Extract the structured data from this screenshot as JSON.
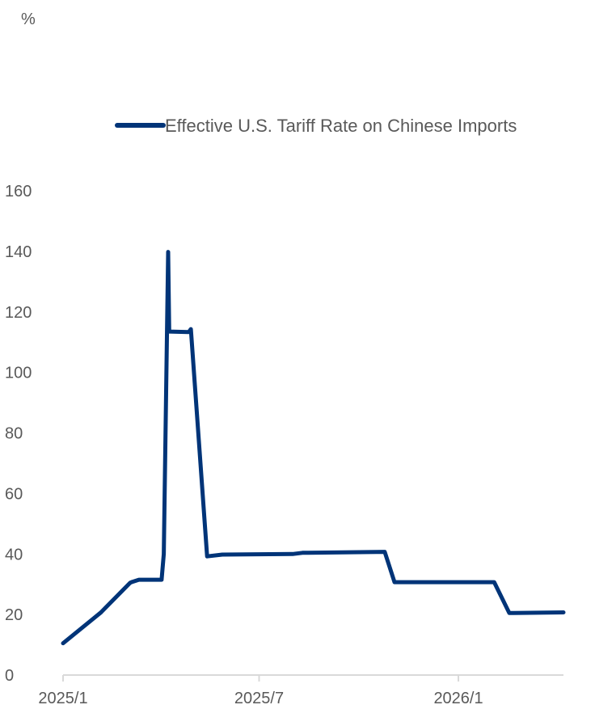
{
  "chart_data": {
    "type": "line",
    "ylabel": "%",
    "ylim": [
      0,
      160
    ],
    "yticks": [
      "0",
      "20",
      "40",
      "60",
      "80",
      "100",
      "120",
      "140",
      "160"
    ],
    "xlim": [
      "2025-01-01",
      "2026-04-08"
    ],
    "xticks": [
      {
        "date": "2025-01-01",
        "label": "2025/1"
      },
      {
        "date": "2025-07-01",
        "label": "2025/7"
      },
      {
        "date": "2026-01-01",
        "label": "2026/1"
      }
    ],
    "legend_position": "top-right",
    "grid": false,
    "colors": {
      "series": "#003478",
      "axis": "#d9d9d9",
      "text": "#595959"
    },
    "series": [
      {
        "name": "Effective U.S. Tariff Rate on Chinese Imports",
        "points": [
          {
            "x": "2025-01-01",
            "y": 10.5
          },
          {
            "x": "2025-02-05",
            "y": 20.7
          },
          {
            "x": "2025-03-04",
            "y": 30.5
          },
          {
            "x": "2025-03-06",
            "y": 30.8
          },
          {
            "x": "2025-03-12",
            "y": 31.5
          },
          {
            "x": "2025-04-02",
            "y": 31.5
          },
          {
            "x": "2025-04-04",
            "y": 40.0
          },
          {
            "x": "2025-04-08",
            "y": 139.8
          },
          {
            "x": "2025-04-09",
            "y": 113.5
          },
          {
            "x": "2025-04-27",
            "y": 113.3
          },
          {
            "x": "2025-04-29",
            "y": 114.3
          },
          {
            "x": "2025-05-14",
            "y": 39.2
          },
          {
            "x": "2025-05-28",
            "y": 39.8
          },
          {
            "x": "2025-08-01",
            "y": 40.0
          },
          {
            "x": "2025-08-10",
            "y": 40.4
          },
          {
            "x": "2025-10-25",
            "y": 40.7
          },
          {
            "x": "2025-11-03",
            "y": 30.7
          },
          {
            "x": "2026-02-03",
            "y": 30.7
          },
          {
            "x": "2026-02-17",
            "y": 20.5
          },
          {
            "x": "2026-04-08",
            "y": 20.7
          }
        ]
      }
    ]
  }
}
